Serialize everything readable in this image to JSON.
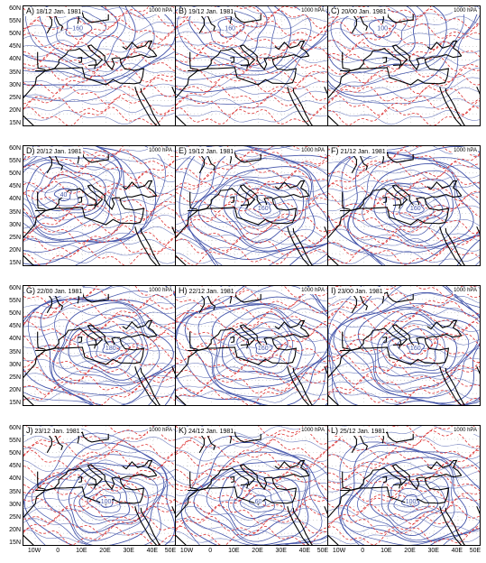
{
  "figure": {
    "level_label": "1000 hPA",
    "lat_labels": [
      "60N",
      "55N",
      "50N",
      "45N",
      "40N",
      "35N",
      "30N",
      "25N",
      "20N",
      "15N"
    ],
    "lon_labels": [
      "10W",
      "0",
      "10E",
      "20E",
      "30E",
      "40E",
      "50E"
    ],
    "colors": {
      "geopotential": "#4455aa",
      "temperature": "#dd3333",
      "coast": "#000000",
      "grid": "#999999"
    },
    "panels": [
      {
        "letter": "A)",
        "time": "18/12  Jan. 1981",
        "low_label": "160",
        "low_position": "north"
      },
      {
        "letter": "B)",
        "time": "19/12  Jan. 1981",
        "low_label": "160",
        "low_position": "north"
      },
      {
        "letter": "C)",
        "time": "20/00  Jan. 1981",
        "low_label": "100",
        "low_position": "north"
      },
      {
        "letter": "D)",
        "time": "20/12  Jan. 1981",
        "low_label": "40",
        "low_position": "west"
      },
      {
        "letter": "E)",
        "time": "19/12  Jan. 1981",
        "low_label": "160",
        "low_position": "central"
      },
      {
        "letter": "F)",
        "time": "21/12  Jan. 1981",
        "low_label": "160",
        "low_position": "central"
      },
      {
        "letter": "G)",
        "time": "22/00  Jan. 1981",
        "low_label": "180",
        "low_position": "central"
      },
      {
        "letter": "H)",
        "time": "22/12  Jan. 1981",
        "low_label": "160",
        "low_position": "central"
      },
      {
        "letter": "I)",
        "time": "23/00  Jan. 1981",
        "low_label": "160",
        "low_position": "central"
      },
      {
        "letter": "J)",
        "time": "23/12  Jan. 1981",
        "low_label": "100",
        "low_position": "south"
      },
      {
        "letter": "K)",
        "time": "24/12  Jan. 1981",
        "low_label": "60",
        "low_position": "south"
      },
      {
        "letter": "L)",
        "time": "25/12  Jan. 1981",
        "low_label": "100",
        "low_position": "south"
      }
    ]
  }
}
